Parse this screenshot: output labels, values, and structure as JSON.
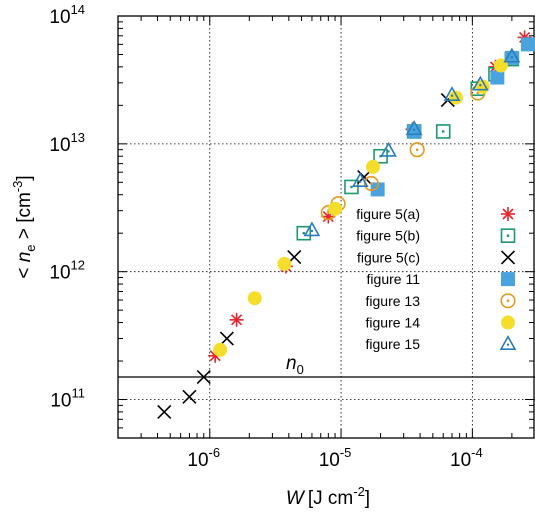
{
  "chart_data": {
    "type": "scatter",
    "xlabel": {
      "italic": "W",
      "unit": "[J cm",
      "unit_exp": "-2",
      "unit_close": "]"
    },
    "ylabel": {
      "open": "< ",
      "italic": "n",
      "sub": "e",
      "close": " > [cm",
      "unit_exp": "-3",
      "unit_close": "]"
    },
    "x_scale": "log",
    "y_scale": "log",
    "xlim": [
      2e-07,
      0.0003
    ],
    "ylim": [
      50000000000.0,
      100000000000000.0
    ],
    "grid": true,
    "x_ticks": [
      {
        "value": 1e-06,
        "base": "10",
        "exp": "-6"
      },
      {
        "value": 1e-05,
        "base": "10",
        "exp": "-5"
      },
      {
        "value": 0.0001,
        "base": "10",
        "exp": "-4"
      }
    ],
    "y_ticks": [
      {
        "value": 100000000000.0,
        "base": "10",
        "exp": "11"
      },
      {
        "value": 1000000000000.0,
        "base": "10",
        "exp": "12"
      },
      {
        "value": 10000000000000.0,
        "base": "10",
        "exp": "13"
      },
      {
        "value": 100000000000000.0,
        "base": "10",
        "exp": "14"
      }
    ],
    "legend_position": "right",
    "reference_line": {
      "label": "n",
      "label_sub": "0",
      "y": 150000000000.0
    },
    "series": [
      {
        "name": "figure 5(a)",
        "marker": "asterisk",
        "color": "#e8242a",
        "points": [
          [
            1.1e-06,
            220000000000.0
          ],
          [
            1.6e-06,
            420000000000.0
          ],
          [
            3.8e-06,
            1100000000000.0
          ],
          [
            8e-06,
            2700000000000.0
          ],
          [
            3.5e-05,
            13000000000000.0
          ],
          [
            0.00015,
            40000000000000.0
          ],
          [
            0.00025,
            68000000000000.0
          ]
        ]
      },
      {
        "name": "figure 5(b)",
        "marker": "square-dot",
        "color": "#1a9a6c",
        "points": [
          [
            5.2e-06,
            2000000000000.0
          ],
          [
            1.2e-05,
            4600000000000.0
          ],
          [
            2e-05,
            8000000000000.0
          ],
          [
            3.6e-05,
            12500000000000.0
          ],
          [
            6e-05,
            12500000000000.0
          ],
          [
            0.00011,
            27000000000000.0
          ],
          [
            0.00015,
            35000000000000.0
          ],
          [
            0.0002,
            46000000000000.0
          ]
        ]
      },
      {
        "name": "figure 5(c)",
        "marker": "cross",
        "color": "#000000",
        "points": [
          [
            4.5e-07,
            80000000000.0
          ],
          [
            7e-07,
            105000000000.0
          ],
          [
            9e-07,
            150000000000.0
          ],
          [
            1.35e-06,
            300000000000.0
          ],
          [
            4.4e-06,
            1300000000000.0
          ],
          [
            1.5e-05,
            5500000000000.0
          ],
          [
            6.5e-05,
            22000000000000.0
          ]
        ]
      },
      {
        "name": "figure 11",
        "marker": "square",
        "color": "#4aa3df",
        "points": [
          [
            1.9e-05,
            4400000000000.0
          ],
          [
            3.6e-05,
            12500000000000.0
          ],
          [
            0.000155,
            33000000000000.0
          ],
          [
            0.0002,
            47000000000000.0
          ],
          [
            0.000265,
            60000000000000.0
          ]
        ]
      },
      {
        "name": "figure 13",
        "marker": "circle-dot",
        "color": "#e39a1e",
        "points": [
          [
            8e-06,
            2900000000000.0
          ],
          [
            9.5e-06,
            3400000000000.0
          ],
          [
            1.7e-05,
            4900000000000.0
          ],
          [
            3.8e-05,
            9000000000000.0
          ],
          [
            0.00011,
            25000000000000.0
          ]
        ]
      },
      {
        "name": "figure 14",
        "marker": "circle",
        "color": "#f5dd2b",
        "points": [
          [
            1.2e-06,
            245000000000.0
          ],
          [
            2.2e-06,
            620000000000.0
          ],
          [
            3.7e-06,
            1150000000000.0
          ],
          [
            9e-06,
            3100000000000.0
          ],
          [
            1.75e-05,
            6600000000000.0
          ],
          [
            7.5e-05,
            23000000000000.0
          ],
          [
            0.00012,
            28000000000000.0
          ],
          [
            0.000165,
            41000000000000.0
          ]
        ]
      },
      {
        "name": "figure 15",
        "marker": "triangle",
        "color": "#2a7db8",
        "points": [
          [
            6e-06,
            2100000000000.0
          ],
          [
            1.4e-05,
            5100000000000.0
          ],
          [
            2.3e-05,
            8800000000000.0
          ],
          [
            3.6e-05,
            13000000000000.0
          ],
          [
            7e-05,
            24000000000000.0
          ],
          [
            0.000115,
            29000000000000.0
          ],
          [
            0.0002,
            48000000000000.0
          ]
        ]
      }
    ]
  }
}
